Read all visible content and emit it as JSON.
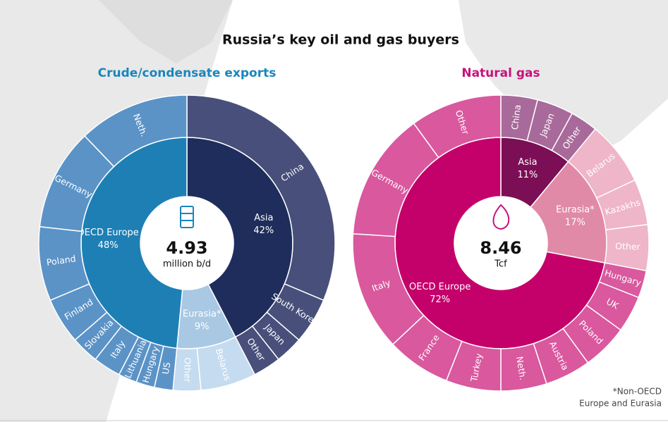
{
  "title": "Russia’s key oil and gas buyers",
  "footnote": [
    "*Non-OECD",
    "Europe and Eurasia"
  ],
  "chart_data": [
    {
      "type": "sunburst",
      "title": "Crude/condensate exports",
      "title_color": "#1a86bd",
      "total": 4.93,
      "total_unit": "million b/d",
      "categories": [
        "Asia",
        "Eurasia*",
        "OECD Europe"
      ],
      "values": [
        42,
        9,
        48
      ],
      "value_labels": [
        "42%",
        "9%",
        "48%"
      ],
      "colors": [
        "#1f2d5c",
        "#a8c8e4",
        "#1e7fb5"
      ],
      "children": [
        {
          "names": [
            "China",
            "South Korea",
            "Japan",
            "Other"
          ],
          "values": [
            31,
            5,
            3,
            3
          ],
          "color": "#474f7a"
        },
        {
          "names": [
            "Belarus",
            "Other"
          ],
          "values": [
            6,
            3
          ],
          "color": "#c5dbef"
        },
        {
          "names": [
            "US",
            "Hungary",
            "Lithuania",
            "Italy",
            "Slovakia",
            "Finland",
            "Poland",
            "Germany",
            "Neth."
          ],
          "values": [
            2,
            2,
            2,
            3,
            3,
            5,
            8,
            11,
            12
          ],
          "color": "#5b93c7"
        }
      ]
    },
    {
      "type": "sunburst",
      "title": "Natural gas",
      "title_color": "#c7127a",
      "total": 8.46,
      "total_unit": "Tcf",
      "categories": [
        "Asia",
        "Eurasia*",
        "OECD Europe"
      ],
      "values": [
        11,
        17,
        72
      ],
      "value_labels": [
        "11%",
        "17%",
        "72%"
      ],
      "colors": [
        "#7b0e55",
        "#e08aa8",
        "#c4006a"
      ],
      "children": [
        {
          "names": [
            "China",
            "Japan",
            "Other"
          ],
          "values": [
            4,
            4,
            3
          ],
          "color": "#a86a9a"
        },
        {
          "names": [
            "Belarus",
            "Kazakhs",
            "Other"
          ],
          "values": [
            7,
            5,
            5
          ],
          "color": "#efb5c8"
        },
        {
          "names": [
            "Hungary",
            "UK",
            "Poland",
            "Austria",
            "Neth.",
            "Turkey",
            "France",
            "Italy",
            "Germany",
            "Other"
          ],
          "values": [
            3,
            4,
            5,
            5,
            5,
            6,
            7,
            13,
            14,
            10
          ],
          "color": "#d9589e"
        }
      ]
    }
  ]
}
